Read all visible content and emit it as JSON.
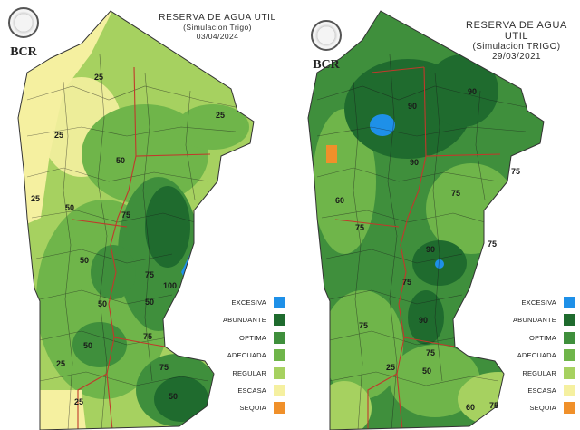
{
  "logo_text": "BCR",
  "maps": [
    {
      "id": "left",
      "title": "RESERVA DE AGUA UTIL",
      "subtitle": "(Simulacion Trigo)",
      "date": "03/04/2024",
      "contour_labels": [
        "25",
        "25",
        "50",
        "25",
        "50",
        "25",
        "75",
        "50",
        "75",
        "50",
        "100",
        "50",
        "75",
        "50",
        "75",
        "25",
        "25",
        "50"
      ]
    },
    {
      "id": "right",
      "title": "RESERVA DE AGUA UTIL",
      "subtitle": "(Simulacion TRIGO)",
      "date": "29/03/2021",
      "contour_labels": [
        "90",
        "90",
        "90",
        "75",
        "75",
        "60",
        "75",
        "90",
        "75",
        "75",
        "90",
        "75",
        "50",
        "75",
        "25",
        "60",
        "75"
      ]
    }
  ],
  "legend": [
    {
      "label": "EXCESIVA",
      "color": "#1e90e8"
    },
    {
      "label": "ABUNDANTE",
      "color": "#1f6b2e"
    },
    {
      "label": "OPTIMA",
      "color": "#3f8f3c"
    },
    {
      "label": "ADECUADA",
      "color": "#6fb54a"
    },
    {
      "label": "REGULAR",
      "color": "#a6d160"
    },
    {
      "label": "ESCASA",
      "color": "#f5f0a0"
    },
    {
      "label": "SEQUIA",
      "color": "#f0902a"
    }
  ]
}
